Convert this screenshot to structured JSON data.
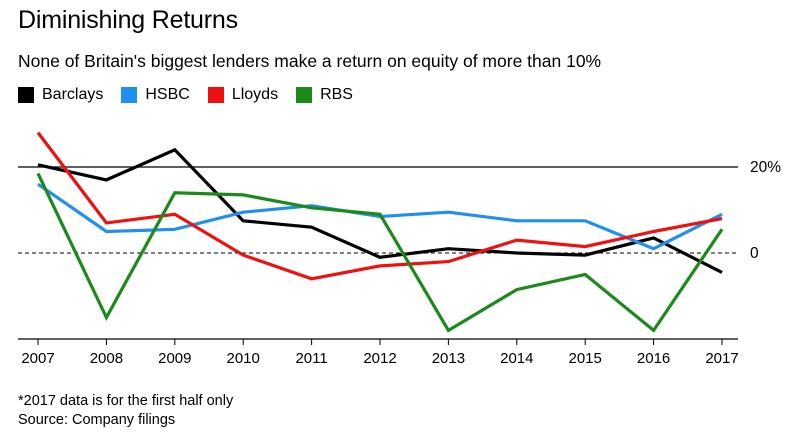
{
  "title": "Diminishing Returns",
  "subtitle": "None of Britain's biggest lenders make a return on equity of more than 10%",
  "footnote": "*2017 data is for the first half only",
  "source": "Source: Company filings",
  "chart_data": {
    "type": "line",
    "title": "Diminishing Returns",
    "subtitle": "None of Britain's biggest lenders make a return on equity of more than 10%",
    "xlabel": "",
    "ylabel": "",
    "x": [
      "2007",
      "2008",
      "2009",
      "2010",
      "2011",
      "2012",
      "2013",
      "2014",
      "2015",
      "2016",
      "2017"
    ],
    "ylim": [
      -20,
      30
    ],
    "y_ticks": [
      {
        "value": 20,
        "label": "20%",
        "style": "solid"
      },
      {
        "value": 0,
        "label": "0",
        "style": "dashed"
      }
    ],
    "legend_position": "top-left",
    "grid": false,
    "series": [
      {
        "name": "Barclays",
        "color": "#000000",
        "values": [
          20.5,
          17,
          24,
          7.5,
          6,
          -1,
          1,
          0,
          -0.5,
          3.5,
          -4.5
        ]
      },
      {
        "name": "HSBC",
        "color": "#1f8ff0",
        "values": [
          16,
          5,
          5.5,
          9.5,
          11,
          8.5,
          9.5,
          7.5,
          7.5,
          1,
          9
        ]
      },
      {
        "name": "Lloyds",
        "color": "#f01010",
        "values": [
          28,
          7,
          9,
          -0.5,
          -6,
          -3,
          -2,
          3,
          1.5,
          5,
          8
        ]
      },
      {
        "name": "RBS",
        "color": "#1a8a1a",
        "values": [
          18.5,
          -15,
          14,
          13.5,
          10.5,
          9,
          -18,
          -8.5,
          -5,
          -18,
          5.5
        ]
      }
    ]
  }
}
